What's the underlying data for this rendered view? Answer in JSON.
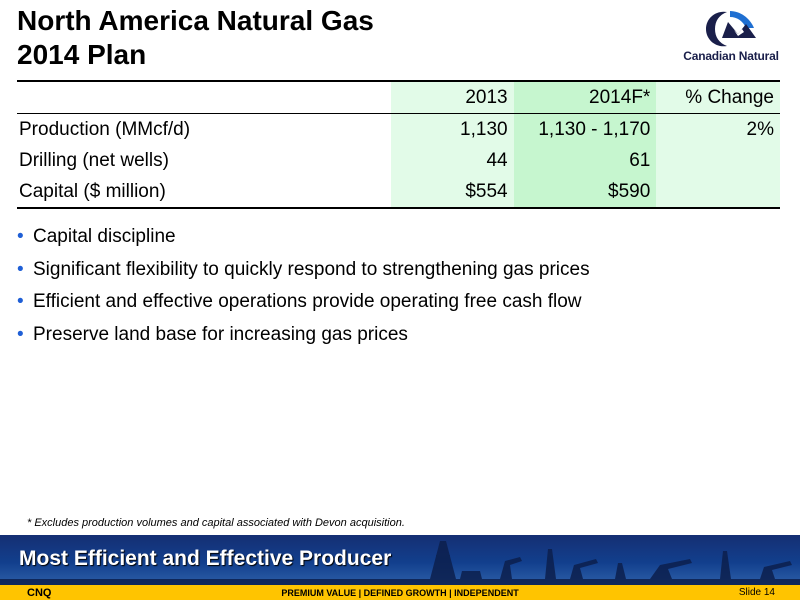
{
  "title": {
    "line1": "North America Natural Gas",
    "line2": "2014 Plan"
  },
  "logo": {
    "text": "Canadian Natural",
    "icon": "canadian-natural-logo-icon"
  },
  "table": {
    "headers": {
      "col1": "2013",
      "col2": "2014F*",
      "col3": "% Change"
    },
    "rows": [
      {
        "label": "Production (MMcf/d)",
        "c1": "1,130",
        "c2": "1,130 - 1,170",
        "c3": "2%"
      },
      {
        "label": "Drilling (net wells)",
        "c1": "44",
        "c2": "61",
        "c3": ""
      },
      {
        "label": "Capital ($ million)",
        "c1": "$554",
        "c2": "$590",
        "c3": ""
      }
    ]
  },
  "bullets": [
    "Capital discipline",
    "Significant flexibility to quickly respond to strengthening gas prices",
    "Efficient and effective operations provide operating free cash flow",
    "Preserve land base for increasing gas prices"
  ],
  "bullet_glyph": "•",
  "footnote": "* Excludes production volumes and capital associated with Devon acquisition.",
  "banner": {
    "text": "Most Efficient and Effective Producer"
  },
  "footer": {
    "ticker": "CNQ",
    "tagline": "PREMIUM VALUE  |  DEFINED GROWTH  |  INDEPENDENT",
    "slide": "Slide 14"
  },
  "colors": {
    "table_light": "#e2fbe8",
    "table_dark": "#c6f6cf",
    "bullet": "#1f5fd6",
    "banner": "#123f8d",
    "footer": "#ffc400",
    "logo_navy": "#1a1f4a",
    "logo_blue": "#1f6fd1"
  }
}
